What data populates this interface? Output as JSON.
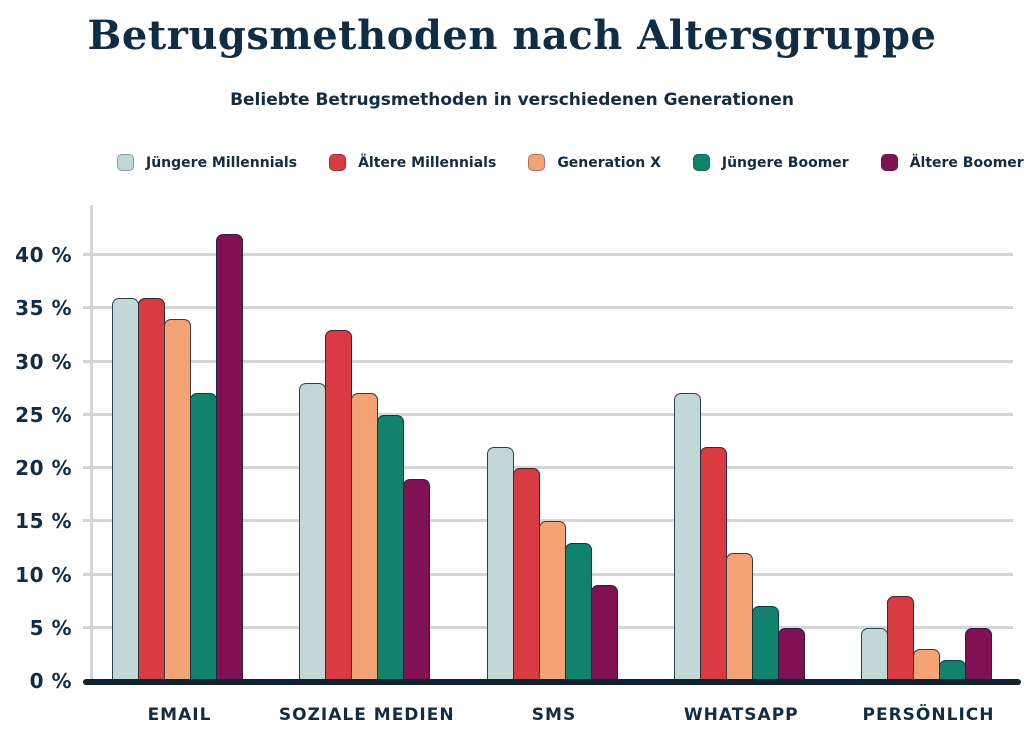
{
  "header": {
    "title": "Betrugsmethoden nach Altersgruppe",
    "subtitle": "Beliebte Betrugsmethoden in verschiedenen Generationen"
  },
  "chart_data": {
    "type": "bar",
    "title": "Betrugsmethoden nach Altersgruppe",
    "subtitle": "Beliebte Betrugsmethoden in verschiedenen Generationen",
    "categories": [
      "EMAIL",
      "SOZIALE MEDIEN",
      "SMS",
      "WHATSAPP",
      "PERSÖNLICH"
    ],
    "series": [
      {
        "name": "Jüngere Millennials",
        "color": "#c2d8d7",
        "values": [
          36,
          28,
          22,
          27,
          5
        ]
      },
      {
        "name": "Ältere Millennials",
        "color": "#d93b42",
        "values": [
          36,
          33,
          20,
          22,
          8
        ]
      },
      {
        "name": "Generation X",
        "color": "#f3a374",
        "values": [
          34,
          27,
          15,
          12,
          3
        ]
      },
      {
        "name": "Jüngere Boomer",
        "color": "#11826b",
        "values": [
          27,
          25,
          13,
          7,
          2
        ]
      },
      {
        "name": "Ältere Boomer",
        "color": "#801254",
        "values": [
          42,
          19,
          9,
          5,
          5
        ]
      }
    ],
    "xlabel": "",
    "ylabel": "",
    "y_ticks": [
      0,
      5,
      10,
      15,
      20,
      25,
      30,
      35,
      40
    ],
    "y_tick_suffix": " %",
    "ylim": [
      0,
      44.7
    ],
    "grid": "horizontal-only",
    "legend_position": "top"
  },
  "colors": {
    "text": "#112d44",
    "axis_line": "#13222f",
    "gridline": "#d4d5d7",
    "background": "#ffffff"
  }
}
